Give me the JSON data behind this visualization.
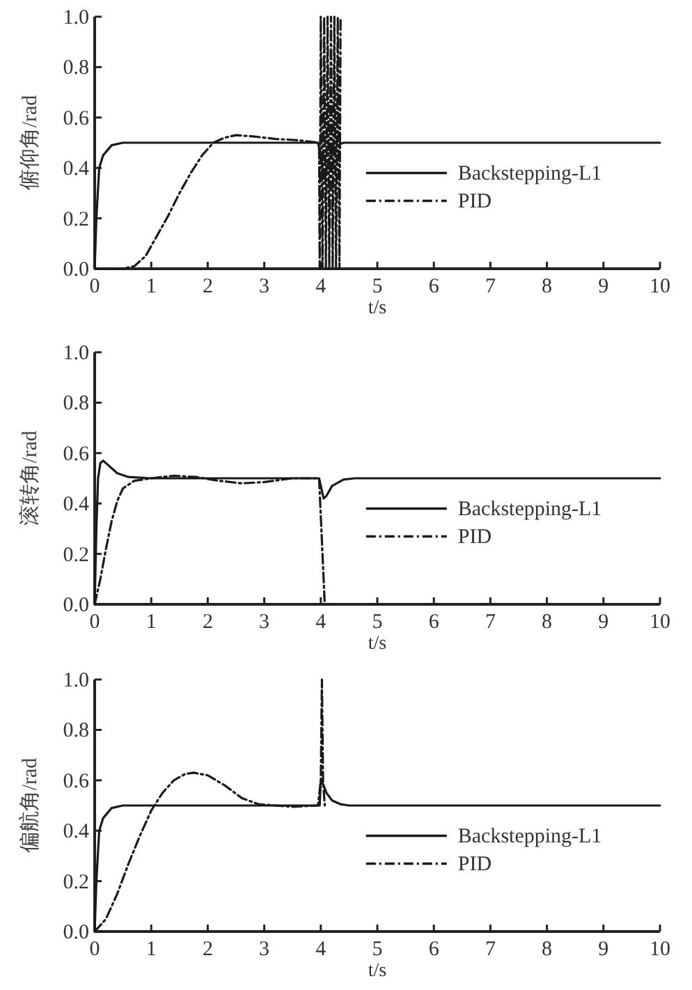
{
  "chart_data": [
    {
      "type": "line",
      "xlabel": "t/s",
      "ylabel": "俯仰角/rad",
      "xlim": [
        0,
        10
      ],
      "ylim": [
        0,
        1
      ],
      "xticks": [
        0,
        1,
        2,
        3,
        4,
        5,
        6,
        7,
        8,
        9,
        10
      ],
      "yticks": [
        {
          "value": 0,
          "label": "0.0"
        },
        {
          "value": 0.2,
          "label": "0.2"
        },
        {
          "value": 0.4,
          "label": "0.4"
        },
        {
          "value": 0.6,
          "label": "0.6"
        },
        {
          "value": 0.8,
          "label": "0.8"
        },
        {
          "value": 1,
          "label": "1.0"
        }
      ],
      "legend": "right",
      "series": [
        {
          "name": "Backstepping-L1",
          "color": "#1a1a1a",
          "line_style": "solid",
          "x": [
            0,
            0.03,
            0.08,
            0.15,
            0.3,
            0.5,
            3.95,
            4.0,
            4.05,
            4.1,
            4.2,
            4.3,
            4.4,
            10
          ],
          "values": [
            0,
            0.2,
            0.4,
            0.45,
            0.49,
            0.5,
            0.5,
            0.45,
            0.37,
            0.4,
            0.46,
            0.49,
            0.5,
            0.5
          ]
        },
        {
          "name": "PID",
          "color": "#1a1a1a",
          "line_style": "dashdot",
          "x": [
            0,
            0.5,
            0.7,
            0.9,
            1.1,
            1.3,
            1.5,
            1.7,
            1.9,
            2.1,
            2.3,
            2.5,
            2.8,
            3.2,
            3.6,
            3.97,
            3.98,
            4.0,
            4.03,
            4.06,
            4.09,
            4.12,
            4.15,
            4.18,
            4.21,
            4.24,
            4.27,
            4.3,
            4.33,
            4.35
          ],
          "values": [
            0,
            0,
            0.01,
            0.05,
            0.13,
            0.21,
            0.3,
            0.38,
            0.45,
            0.5,
            0.52,
            0.53,
            0.525,
            0.515,
            0.51,
            0.5,
            0,
            1,
            0,
            1,
            0,
            1,
            0,
            1,
            0,
            1,
            0,
            1,
            0,
            1
          ]
        }
      ]
    },
    {
      "type": "line",
      "xlabel": "t/s",
      "ylabel": "滚转角/rad",
      "xlim": [
        0,
        10
      ],
      "ylim": [
        0,
        1
      ],
      "xticks": [
        0,
        1,
        2,
        3,
        4,
        5,
        6,
        7,
        8,
        9,
        10
      ],
      "yticks": [
        {
          "value": 0,
          "label": "0.0"
        },
        {
          "value": 0.2,
          "label": "0.2"
        },
        {
          "value": 0.4,
          "label": "0.4"
        },
        {
          "value": 0.6,
          "label": "0.6"
        },
        {
          "value": 0.8,
          "label": "0.8"
        },
        {
          "value": 1,
          "label": "1.0"
        }
      ],
      "legend": "right",
      "series": [
        {
          "name": "Backstepping-L1",
          "color": "#1a1a1a",
          "line_style": "solid",
          "x": [
            0,
            0.03,
            0.06,
            0.1,
            0.15,
            0.25,
            0.4,
            0.6,
            1,
            3.97,
            4.0,
            4.05,
            4.1,
            4.2,
            4.4,
            4.6,
            10
          ],
          "values": [
            0,
            0.3,
            0.5,
            0.56,
            0.57,
            0.55,
            0.52,
            0.505,
            0.5,
            0.5,
            0.47,
            0.42,
            0.43,
            0.47,
            0.495,
            0.5,
            0.5
          ]
        },
        {
          "name": "PID",
          "color": "#1a1a1a",
          "line_style": "dashdot",
          "x": [
            0,
            0.1,
            0.2,
            0.3,
            0.4,
            0.5,
            0.7,
            1,
            1.4,
            1.8,
            2.2,
            2.6,
            3.0,
            3.5,
            3.97,
            4.03,
            4.07
          ],
          "values": [
            0,
            0.1,
            0.22,
            0.33,
            0.41,
            0.46,
            0.49,
            0.5,
            0.51,
            0.505,
            0.49,
            0.48,
            0.485,
            0.5,
            0.5,
            0.2,
            0
          ]
        }
      ]
    },
    {
      "type": "line",
      "xlabel": "t/s",
      "ylabel": "偏航角/rad",
      "xlim": [
        0,
        10
      ],
      "ylim": [
        0,
        1
      ],
      "xticks": [
        0,
        1,
        2,
        3,
        4,
        5,
        6,
        7,
        8,
        9,
        10
      ],
      "yticks": [
        {
          "value": 0,
          "label": "0.0"
        },
        {
          "value": 0.2,
          "label": "0.2"
        },
        {
          "value": 0.4,
          "label": "0.4"
        },
        {
          "value": 0.6,
          "label": "0.6"
        },
        {
          "value": 0.8,
          "label": "0.8"
        },
        {
          "value": 1,
          "label": "1.0"
        }
      ],
      "legend": "right",
      "series": [
        {
          "name": "Backstepping-L1",
          "color": "#1a1a1a",
          "line_style": "solid",
          "x": [
            0,
            0.03,
            0.08,
            0.15,
            0.3,
            0.5,
            3.98,
            4.0,
            4.05,
            4.1,
            4.2,
            4.35,
            4.5,
            10
          ],
          "values": [
            0,
            0.2,
            0.4,
            0.45,
            0.49,
            0.5,
            0.5,
            0.6,
            0.58,
            0.55,
            0.52,
            0.505,
            0.5,
            0.5
          ]
        },
        {
          "name": "PID",
          "color": "#1a1a1a",
          "line_style": "dashdot",
          "x": [
            0,
            0.2,
            0.4,
            0.6,
            0.8,
            1.0,
            1.2,
            1.4,
            1.6,
            1.75,
            2.0,
            2.3,
            2.6,
            2.9,
            3.2,
            3.5,
            3.95,
            4.0,
            4.02,
            4.04,
            4.07
          ],
          "values": [
            0,
            0.05,
            0.15,
            0.27,
            0.38,
            0.48,
            0.55,
            0.6,
            0.625,
            0.63,
            0.62,
            0.58,
            0.53,
            0.505,
            0.5,
            0.495,
            0.5,
            0.6,
            1.0,
            0.6,
            0.5
          ]
        }
      ]
    }
  ]
}
